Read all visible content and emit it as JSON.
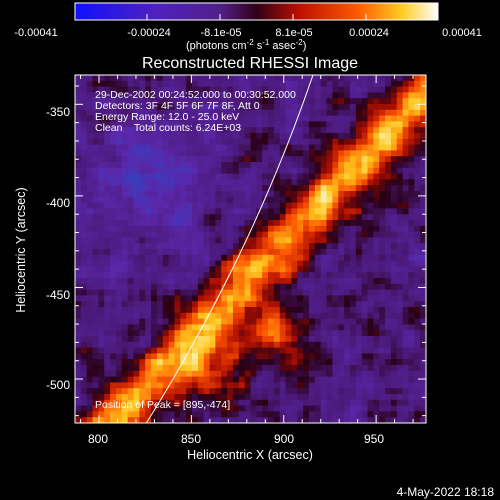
{
  "colorbar": {
    "ticks": [
      "-0.00041",
      "-0.00024",
      "-8.1e-05",
      "8.1e-05",
      "0.00024",
      "0.00041"
    ],
    "units_main": "(photons cm",
    "units_exp1": "-2",
    "units_mid": " s",
    "units_exp2": "-1",
    "units_tail": " asec",
    "units_exp3": "-2",
    "units_close": ")"
  },
  "title": "Reconstructed RHESSI Image",
  "annotations": {
    "time": "29-Dec-2002 00:24:52.000 to 00:30:52.000",
    "detectors": "Detectors: 3F 4F 5F 6F 7F 8F, Att 0",
    "energy": "Energy Range: 12.0 - 25.0 keV",
    "method": "Clean    Total counts: 6.24E+03",
    "peak": "Position of Peak = [895,-474]"
  },
  "axes": {
    "xlabel": "Heliocentric X (arcsec)",
    "ylabel": "Heliocentric Y (arcsec)",
    "xticks": [
      "800",
      "850",
      "900",
      "950"
    ],
    "yticks": [
      "-350",
      "-400",
      "-450",
      "-500"
    ],
    "xrange": [
      787,
      977
    ],
    "yrange": [
      -524,
      -334
    ]
  },
  "footer": {
    "date": "4-May-2022 18:18"
  }
}
